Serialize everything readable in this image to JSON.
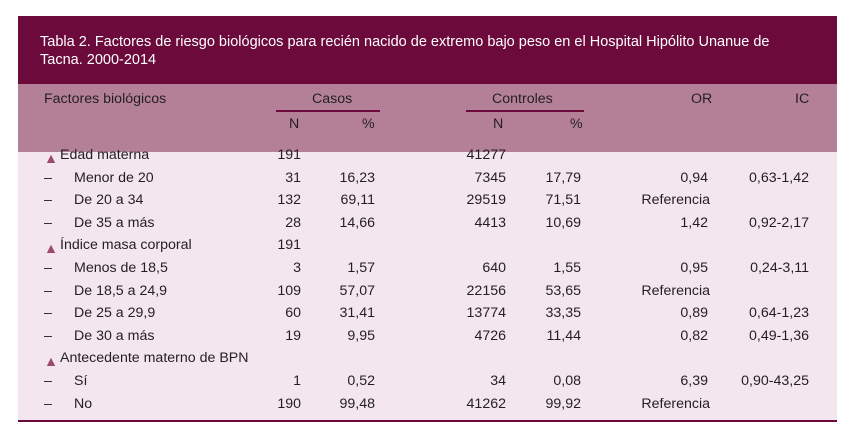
{
  "title": "Tabla 2. Factores de riesgo biológicos para recién nacido de extremo bajo peso en el Hospital Hipólito Unanue de Tacna. 2000-2014",
  "header": {
    "factor": "Factores biológicos",
    "casos": "Casos",
    "controles": "Controles",
    "or": "OR",
    "ic": "IC",
    "n1": "N",
    "pct1": "%",
    "n2": "N",
    "pct2": "%"
  },
  "bullet": "▲",
  "dash": "–",
  "rows": [
    {
      "kind": "group",
      "label": "Edad materna",
      "casos_n": "191",
      "casos_pct": "",
      "ctrl_n": "41277",
      "ctrl_pct": "",
      "or": "",
      "ic": ""
    },
    {
      "kind": "item",
      "label": "Menor de 20",
      "casos_n": "31",
      "casos_pct": "16,23",
      "ctrl_n": "7345",
      "ctrl_pct": "17,79",
      "or": "0,94",
      "ic": "0,63-1,42"
    },
    {
      "kind": "item",
      "label": "De 20 a 34",
      "casos_n": "132",
      "casos_pct": "69,11",
      "ctrl_n": "29519",
      "ctrl_pct": "71,51",
      "or": "Referencia",
      "ic": ""
    },
    {
      "kind": "item",
      "label": "De 35 a más",
      "casos_n": "28",
      "casos_pct": "14,66",
      "ctrl_n": "4413",
      "ctrl_pct": "10,69",
      "or": "1,42",
      "ic": "0,92-2,17"
    },
    {
      "kind": "group",
      "label": "Índice masa corporal",
      "casos_n": "191",
      "casos_pct": "",
      "ctrl_n": "",
      "ctrl_pct": "",
      "or": "",
      "ic": ""
    },
    {
      "kind": "item",
      "label": "Menos de 18,5",
      "casos_n": "3",
      "casos_pct": "1,57",
      "ctrl_n": "640",
      "ctrl_pct": "1,55",
      "or": "0,95",
      "ic": "0,24-3,11"
    },
    {
      "kind": "item",
      "label": "De 18,5 a 24,9",
      "casos_n": "109",
      "casos_pct": "57,07",
      "ctrl_n": "22156",
      "ctrl_pct": "53,65",
      "or": "Referencia",
      "ic": ""
    },
    {
      "kind": "item",
      "label": "De 25 a 29,9",
      "casos_n": "60",
      "casos_pct": "31,41",
      "ctrl_n": "13774",
      "ctrl_pct": "33,35",
      "or": "0,89",
      "ic": "0,64-1,23"
    },
    {
      "kind": "item",
      "label": "De 30 a más",
      "casos_n": "19",
      "casos_pct": "9,95",
      "ctrl_n": "4726",
      "ctrl_pct": "11,44",
      "or": "0,82",
      "ic": "0,49-1,36"
    },
    {
      "kind": "group",
      "label": "Antecedente materno de BPN",
      "casos_n": "",
      "casos_pct": "",
      "ctrl_n": "",
      "ctrl_pct": "",
      "or": "",
      "ic": ""
    },
    {
      "kind": "item",
      "label": "Sí",
      "casos_n": "1",
      "casos_pct": "0,52",
      "ctrl_n": "34",
      "ctrl_pct": "0,08",
      "or": "6,39",
      "ic": "0,90-43,25"
    },
    {
      "kind": "item",
      "label": "No",
      "casos_n": "190",
      "casos_pct": "99,48",
      "ctrl_n": "41262",
      "ctrl_pct": "99,92",
      "or": "Referencia",
      "ic": ""
    }
  ]
}
